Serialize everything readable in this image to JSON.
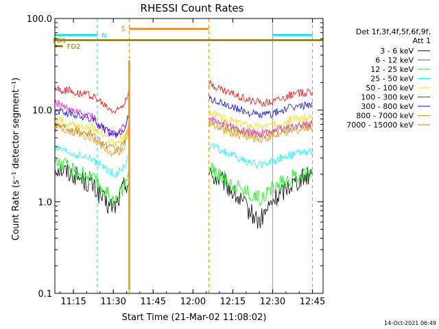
{
  "chart_data": {
    "type": "line",
    "title": "RHESSI Count Rates",
    "xlabel": "Start Time (21-Mar-02 11:08:02)",
    "ylabel": "Count Rate (s⁻¹ detector segment⁻¹)",
    "y_scale": "log",
    "ylim": [
      0.1,
      100
    ],
    "xlim": [
      "11:08",
      "12:49"
    ],
    "grid": false,
    "legend_position": "right",
    "legend_header": [
      "Det 1f,3f,4f,5f,6f,9f,",
      "Att 1"
    ],
    "x_ticks": [
      "11:15",
      "11:30",
      "11:45",
      "12:00",
      "12:15",
      "12:30",
      "12:45"
    ],
    "y_ticks": [
      "0.1",
      "1.0",
      "10.0",
      "100.0"
    ],
    "data_gaps": [
      [
        "11:36",
        "12:06"
      ]
    ],
    "series": [
      {
        "name": "3 - 6 keV",
        "color": "#000000",
        "x": [
          "11:08",
          "11:15",
          "11:22",
          "11:28",
          "11:31",
          "11:34",
          "11:36",
          "12:06",
          "12:12",
          "12:18",
          "12:25",
          "12:30",
          "12:36",
          "12:45"
        ],
        "y": [
          2.4,
          2.0,
          1.5,
          0.9,
          0.9,
          1.5,
          1.7,
          2.0,
          1.6,
          1.0,
          0.6,
          1.0,
          1.5,
          2.1
        ]
      },
      {
        "name": "6 - 12 keV",
        "color": "#ff00ff",
        "x": [
          "11:08",
          "11:15",
          "11:22",
          "11:28",
          "11:31",
          "11:34",
          "11:36",
          "12:06",
          "12:12",
          "12:18",
          "12:25",
          "12:30",
          "12:36",
          "12:45"
        ],
        "y": [
          12.0,
          9.5,
          8.5,
          5.8,
          5.5,
          6.5,
          9.0,
          8.0,
          7.0,
          6.0,
          5.5,
          6.0,
          6.5,
          7.0
        ]
      },
      {
        "name": "12 - 25 keV",
        "color": "#00ff00",
        "x": [
          "11:08",
          "11:15",
          "11:22",
          "11:28",
          "11:31",
          "11:34",
          "11:36",
          "12:06",
          "12:12",
          "12:18",
          "12:25",
          "12:30",
          "12:36",
          "12:45"
        ],
        "y": [
          2.8,
          2.2,
          1.8,
          1.2,
          1.0,
          1.5,
          2.0,
          2.3,
          1.8,
          1.4,
          1.1,
          1.4,
          1.8,
          2.2
        ]
      },
      {
        "name": "25 - 50 keV",
        "color": "#00ffff",
        "x": [
          "11:08",
          "11:15",
          "11:22",
          "11:28",
          "11:31",
          "11:34",
          "11:36",
          "12:06",
          "12:12",
          "12:18",
          "12:25",
          "12:30",
          "12:36",
          "12:45"
        ],
        "y": [
          3.8,
          3.3,
          2.9,
          2.2,
          2.0,
          2.4,
          3.0,
          4.2,
          3.5,
          2.9,
          2.5,
          2.8,
          3.2,
          3.6
        ]
      },
      {
        "name": "50 - 100 keV",
        "color": "#ffd700",
        "x": [
          "11:08",
          "11:15",
          "11:22",
          "11:28",
          "11:31",
          "11:34",
          "11:36",
          "12:06",
          "12:12",
          "12:18",
          "12:25",
          "12:30",
          "12:36",
          "12:45"
        ],
        "y": [
          8.0,
          7.0,
          6.5,
          4.8,
          4.3,
          5.2,
          6.0,
          9.5,
          8.0,
          7.2,
          6.5,
          7.0,
          7.8,
          8.5
        ]
      },
      {
        "name": "100 - 300 keV",
        "color": "#ff0000",
        "x": [
          "11:08",
          "11:15",
          "11:22",
          "11:28",
          "11:31",
          "11:34",
          "11:36",
          "12:06",
          "12:12",
          "12:18",
          "12:25",
          "12:30",
          "12:36",
          "12:45"
        ],
        "y": [
          17.0,
          16.0,
          14.5,
          10.5,
          9.5,
          12.0,
          17.0,
          19.5,
          16.0,
          14.0,
          12.0,
          12.5,
          14.5,
          16.0
        ]
      },
      {
        "name": "300 - 800 keV",
        "color": "#0000ff",
        "x": [
          "11:08",
          "11:15",
          "11:22",
          "11:28",
          "11:31",
          "11:34",
          "11:36",
          "12:06",
          "12:12",
          "12:18",
          "12:25",
          "12:30",
          "12:36",
          "12:45"
        ],
        "y": [
          10.0,
          9.0,
          8.0,
          5.8,
          5.2,
          6.3,
          9.0,
          13.5,
          11.5,
          10.0,
          8.8,
          9.2,
          10.5,
          11.8
        ]
      },
      {
        "name": "800 - 7000 keV",
        "color": "#ff8c00",
        "x": [
          "11:08",
          "11:15",
          "11:22",
          "11:28",
          "11:31",
          "11:34",
          "11:36",
          "12:06",
          "12:12",
          "12:18",
          "12:25",
          "12:30",
          "12:36",
          "12:45"
        ],
        "y": [
          6.5,
          5.8,
          5.0,
          3.6,
          3.2,
          4.0,
          6.0,
          7.0,
          6.0,
          5.3,
          4.8,
          5.2,
          5.8,
          6.5
        ]
      },
      {
        "name": "7000 - 15000 keV",
        "color": "#b8860b",
        "x": [
          "11:08",
          "11:15",
          "11:22",
          "11:28",
          "11:31",
          "11:34",
          "11:36",
          "12:06",
          "12:12",
          "12:18",
          "12:25",
          "12:30",
          "12:36",
          "12:45"
        ],
        "y": [
          7.0,
          6.3,
          5.5,
          4.0,
          3.6,
          4.4,
          6.5,
          7.8,
          6.6,
          5.9,
          5.3,
          5.7,
          6.4,
          7.2
        ]
      }
    ],
    "flags": [
      {
        "label": "N",
        "color": "#00e5ee",
        "segments": [
          [
            "11:08",
            "11:24"
          ],
          [
            "12:30",
            "12:45"
          ]
        ],
        "level": 66
      },
      {
        "label": "S",
        "color": "#ff8c00",
        "segments": [
          [
            "11:36",
            "12:06"
          ]
        ],
        "level": 77
      },
      {
        "label": "FD1",
        "color": "#9a8c00",
        "segments": [
          [
            "11:08",
            "12:49"
          ]
        ],
        "level": 58
      },
      {
        "label": "FD2",
        "color": "#808000",
        "segments": [
          [
            "11:08",
            "11:11"
          ]
        ],
        "level": 50
      }
    ],
    "markers": [
      {
        "time": "11:08",
        "color": "#00e5ee",
        "style": "solid"
      },
      {
        "time": "11:24",
        "color": "#00e5ee",
        "style": "dashed"
      },
      {
        "time": "11:36",
        "color": "#ff8c00",
        "style": "dashed"
      },
      {
        "time": "12:06",
        "color": "#ff8c00",
        "style": "dashed"
      },
      {
        "time": "12:30",
        "color": "#00e5ee",
        "style": "solid"
      },
      {
        "time": "12:45",
        "color": "#00e5ee",
        "style": "dashed"
      }
    ]
  },
  "footer": {
    "timestamp": "14-Oct-2021 06:49"
  }
}
